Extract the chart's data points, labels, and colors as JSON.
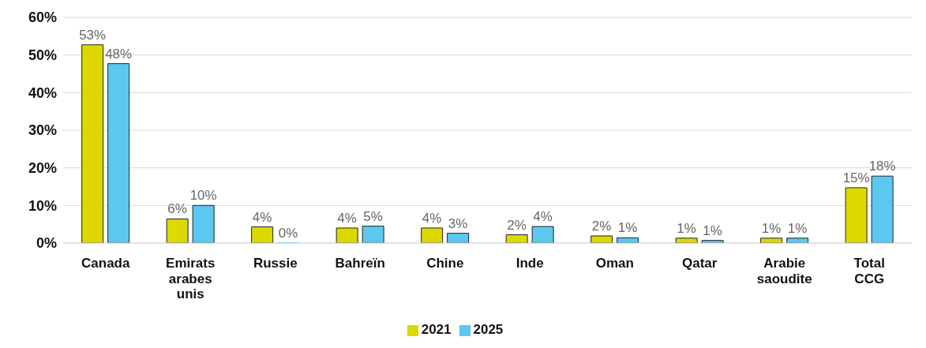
{
  "chart_data": {
    "type": "bar",
    "categories": [
      "Canada",
      "Emirats arabes unis",
      "Russie",
      "Bahreïn",
      "Chine",
      "Inde",
      "Oman",
      "Qatar",
      "Arabie saoudite",
      "Total CCG"
    ],
    "series": [
      {
        "name": "2021",
        "color": "#dcd800",
        "values": [
          52.7,
          6.4,
          4.3,
          4.0,
          4.0,
          2.2,
          1.9,
          1.3,
          1.3,
          14.7
        ],
        "value_labels": [
          "53%",
          "6%",
          "4%",
          "4%",
          "4%",
          "2%",
          "2%",
          "1%",
          "1%",
          "15%"
        ]
      },
      {
        "name": "2025",
        "color": "#5bc8f0",
        "values": [
          47.7,
          10.0,
          0,
          4.5,
          2.6,
          4.4,
          1.4,
          0.7,
          1.3,
          17.8
        ],
        "value_labels": [
          "48%",
          "10%",
          "0%",
          "5%",
          "3%",
          "4%",
          "1%",
          "1%",
          "1%",
          "18%"
        ]
      }
    ],
    "ylim": [
      0,
      60
    ],
    "yticks": [
      {
        "value": 0,
        "label": "0%"
      },
      {
        "value": 10,
        "label": "10%"
      },
      {
        "value": 20,
        "label": "20%"
      },
      {
        "value": 30,
        "label": "30%"
      },
      {
        "value": 40,
        "label": "40%"
      },
      {
        "value": 50,
        "label": "50%"
      },
      {
        "value": 60,
        "label": "60%"
      }
    ],
    "grid": "y",
    "legend": "bottom"
  }
}
